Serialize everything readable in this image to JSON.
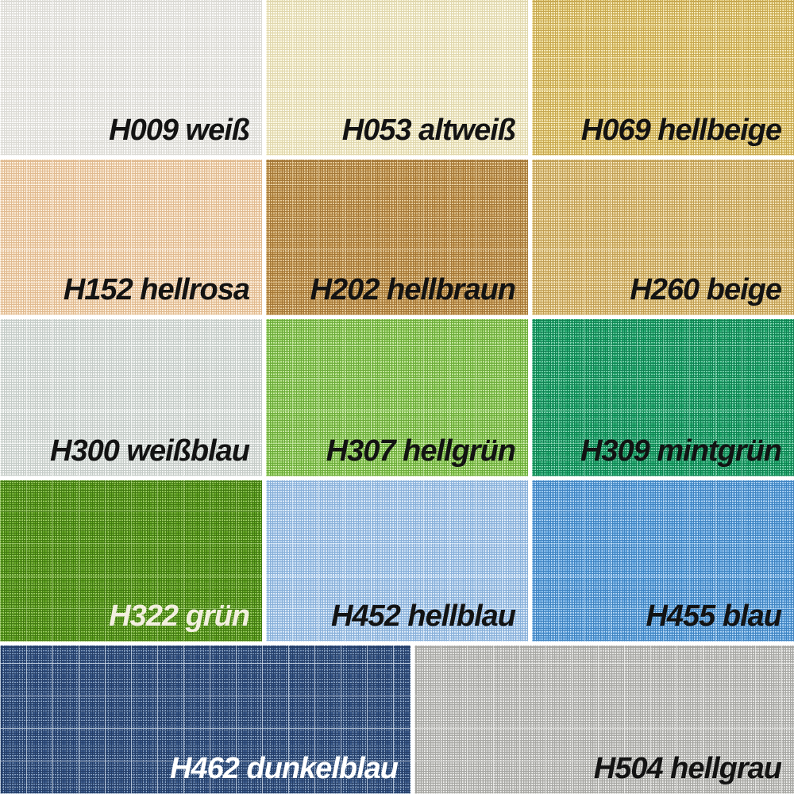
{
  "page": {
    "description": "Fabric color sample chart with 14 woven textile swatches, each labeled with an H color code and a German color name",
    "background_color": "#ffffff",
    "label_font_style": "bold italic"
  },
  "swatches": [
    {
      "code": "H009",
      "name": "weiß",
      "label": "H009 weiß",
      "text_color": "#131313",
      "base": "#f2f1ed",
      "hi": "#ffffff",
      "lo": "#dbdad5",
      "slub": "rgba(255,255,255,0.55)"
    },
    {
      "code": "H053",
      "name": "altweiß",
      "label": "H053 altweiß",
      "text_color": "#131313",
      "base": "#f8f3d6",
      "hi": "#fffdf0",
      "lo": "#e0d7ae",
      "slub": "rgba(255,253,235,0.55)"
    },
    {
      "code": "H069",
      "name": "hellbeige",
      "label": "H069 hellbeige",
      "text_color": "#131313",
      "base": "#ecd88c",
      "hi": "#f8edc2",
      "lo": "#c7a851",
      "slub": "rgba(253,244,210,0.55)"
    },
    {
      "code": "H152",
      "name": "hellrosa",
      "label": "H152 hellrosa",
      "text_color": "#131313",
      "base": "#f8e2c7",
      "hi": "#fdf2e3",
      "lo": "#e0ba90",
      "slub": "rgba(255,248,238,0.55)"
    },
    {
      "code": "H202",
      "name": "hellbraun",
      "label": "H202 hellbraun",
      "text_color": "#131313",
      "base": "#d1a765",
      "hi": "#e9d0a2",
      "lo": "#a47838",
      "slub": "rgba(240,218,175,0.5)"
    },
    {
      "code": "H260",
      "name": "beige",
      "label": "H260 beige",
      "text_color": "#131313",
      "base": "#e9d093",
      "hi": "#f5e7c0",
      "lo": "#c19f55",
      "slub": "rgba(250,238,205,0.5)"
    },
    {
      "code": "H300",
      "name": "weißblau",
      "label": "H300 weißblau",
      "text_color": "#131313",
      "base": "#e8ebe8",
      "hi": "#fafcfa",
      "lo": "#c4cbc7",
      "slub": "rgba(255,255,255,0.6)"
    },
    {
      "code": "H307",
      "name": "hellgrün",
      "label": "H307 hellgrün",
      "text_color": "#131313",
      "base": "#a2d972",
      "hi": "#ceecab",
      "lo": "#6cab3a",
      "slub": "rgba(220,242,195,0.5)"
    },
    {
      "code": "H309",
      "name": "mintgrün",
      "label": "H309 mintgrün",
      "text_color": "#131313",
      "base": "#2db377",
      "hi": "#85d8b5",
      "lo": "#108253",
      "slub": "rgba(170,225,200,0.5)"
    },
    {
      "code": "H322",
      "name": "grün",
      "label": "H322 grün",
      "text_color": "#f2efdf",
      "base": "#66a827",
      "hi": "#9ccc63",
      "lo": "#417a11",
      "slub": "rgba(190,220,150,0.5)"
    },
    {
      "code": "H452",
      "name": "hellblau",
      "label": "H452 hellblau",
      "text_color": "#131313",
      "base": "#bdd7f1",
      "hi": "#e3eefa",
      "lo": "#89b0d9",
      "slub": "rgba(240,248,255,0.55)"
    },
    {
      "code": "H455",
      "name": "blau",
      "label": "H455 blau",
      "text_color": "#131313",
      "base": "#7ab6ea",
      "hi": "#b6d7f5",
      "lo": "#4084c1",
      "slub": "rgba(205,228,248,0.5)"
    },
    {
      "code": "H462",
      "name": "dunkelblau",
      "label": "H462 dunkelblau",
      "text_color": "#ffffff",
      "base": "#3c5c8e",
      "hi": "#8aa4c5",
      "lo": "#263f68",
      "slub": "rgba(218,228,240,0.7)"
    },
    {
      "code": "H504",
      "name": "hellgrau",
      "label": "H504 hellgrau",
      "text_color": "#131313",
      "base": "#d1d1cf",
      "hi": "#ededeb",
      "lo": "#a7a7a3",
      "slub": "rgba(245,245,243,0.6)"
    }
  ]
}
